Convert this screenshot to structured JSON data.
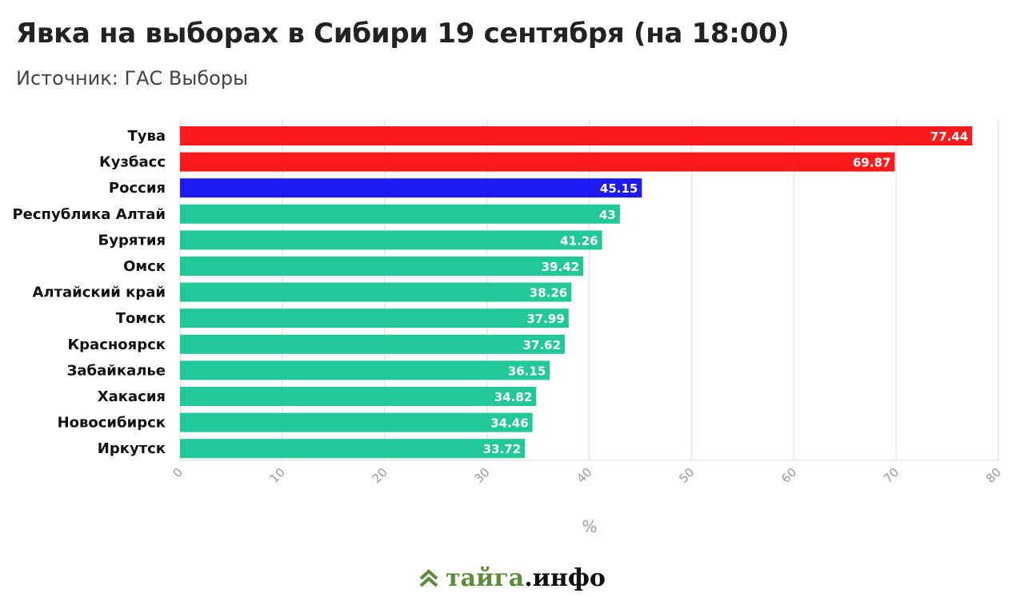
{
  "title": "Явка на выборах в Сибири 19 сентября (на 18:00)",
  "subtitle": "Источник: ГАС Выборы",
  "colors": {
    "highlight_high": "#fc1a1a",
    "russia": "#1d1bf2",
    "default": "#20c997",
    "grid": "#e6e6e6",
    "tick": "#9a9a9a"
  },
  "chart_data": {
    "type": "bar",
    "orientation": "horizontal",
    "categories": [
      "Тува",
      "Кузбасс",
      "Россия",
      "Республика Алтай",
      "Бурятия",
      "Омск",
      "Алтайский край",
      "Томск",
      "Красноярск",
      "Забайкалье",
      "Хакасия",
      "Новосибирск",
      "Иркутск"
    ],
    "values": [
      77.44,
      69.87,
      45.15,
      43,
      41.26,
      39.42,
      38.26,
      37.99,
      37.62,
      36.15,
      34.82,
      34.46,
      33.72
    ],
    "value_labels": [
      "77.44",
      "69.87",
      "45.15",
      "43",
      "41.26",
      "39.42",
      "38.26",
      "37.99",
      "37.62",
      "36.15",
      "34.82",
      "34.46",
      "33.72"
    ],
    "bar_colors": [
      "#fc1a1a",
      "#fc1a1a",
      "#1d1bf2",
      "#20c997",
      "#20c997",
      "#20c997",
      "#20c997",
      "#20c997",
      "#20c997",
      "#20c997",
      "#20c997",
      "#20c997",
      "#20c997"
    ],
    "xlabel": "%",
    "xlim": [
      0,
      80
    ],
    "xticks": [
      0,
      10,
      20,
      30,
      40,
      50,
      60,
      70,
      80
    ],
    "grid": true,
    "legend": "none"
  },
  "footer": {
    "brand_part1": "тайга",
    "brand_part2": ".инфо",
    "logo_icon": "double-chevron-up-icon"
  }
}
